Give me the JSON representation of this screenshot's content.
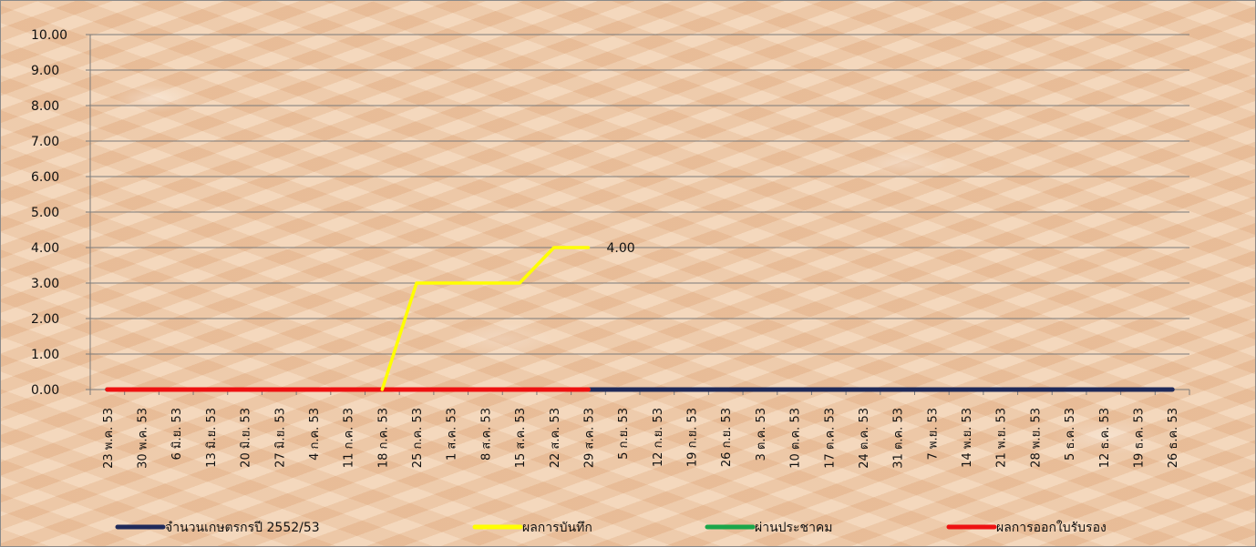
{
  "chart_data": {
    "type": "line",
    "title": "",
    "xlabel": "",
    "ylabel": "",
    "ylim": [
      0,
      10
    ],
    "yticks": [
      "0.00",
      "1.00",
      "2.00",
      "3.00",
      "4.00",
      "5.00",
      "6.00",
      "7.00",
      "8.00",
      "9.00",
      "10.00"
    ],
    "grid": true,
    "legend_position": "bottom",
    "categories": [
      "23 พ.ค. 53",
      "30 พ.ค. 53",
      "6 มิ.ย. 53",
      "13 มิ.ย. 53",
      "20 มิ.ย. 53",
      "27 มิ.ย. 53",
      "4 ก.ค. 53",
      "11 ก.ค. 53",
      "18 ก.ค. 53",
      "25 ก.ค. 53",
      "1 ส.ค. 53",
      "8 ส.ค. 53",
      "15 ส.ค. 53",
      "22 ส.ค. 53",
      "29 ส.ค. 53",
      "5 ก.ย. 53",
      "12 ก.ย. 53",
      "19 ก.ย. 53",
      "26 ก.ย. 53",
      "3 ต.ค. 53",
      "10 ต.ค. 53",
      "17 ต.ค. 53",
      "24 ต.ค. 53",
      "31 ต.ค. 53",
      "7 พ.ย. 53",
      "14 พ.ย. 53",
      "21 พ.ย. 53",
      "28 พ.ย. 53",
      "5 ธ.ค. 53",
      "12 ธ.ค. 53",
      "19 ธ.ค. 53",
      "26 ธ.ค. 53"
    ],
    "series": [
      {
        "name": "จำนวนเกษตรกรปี  2552/53",
        "color": "#1f2a5a",
        "values": [
          0,
          0,
          0,
          0,
          0,
          0,
          0,
          0,
          0,
          0,
          0,
          0,
          0,
          0,
          0,
          0,
          0,
          0,
          0,
          0,
          0,
          0,
          0,
          0,
          0,
          0,
          0,
          0,
          0,
          0,
          0,
          0
        ]
      },
      {
        "name": "ผลการบันทึก",
        "color": "#ffff00",
        "values": [
          null,
          null,
          null,
          null,
          null,
          null,
          null,
          null,
          0,
          3,
          3,
          3,
          3,
          4,
          4,
          null,
          null,
          null,
          null,
          null,
          null,
          null,
          null,
          null,
          null,
          null,
          null,
          null,
          null,
          null,
          null,
          null
        ]
      },
      {
        "name": "ผ่านประชาคม",
        "color": "#1aa64a",
        "values": [
          0,
          0,
          0,
          0,
          0,
          0,
          0,
          0,
          0,
          0,
          0,
          0,
          0,
          0,
          0,
          null,
          null,
          null,
          null,
          null,
          null,
          null,
          null,
          null,
          null,
          null,
          null,
          null,
          null,
          null,
          null,
          null
        ]
      },
      {
        "name": "ผลการออกใบรับรอง",
        "color": "#ee1111",
        "values": [
          0,
          0,
          0,
          0,
          0,
          0,
          0,
          0,
          0,
          0,
          0,
          0,
          0,
          0,
          0,
          null,
          null,
          null,
          null,
          null,
          null,
          null,
          null,
          null,
          null,
          null,
          null,
          null,
          null,
          null,
          null,
          null
        ]
      }
    ],
    "annotations": [
      {
        "series": 1,
        "index": 14,
        "text": "4.00"
      }
    ]
  }
}
